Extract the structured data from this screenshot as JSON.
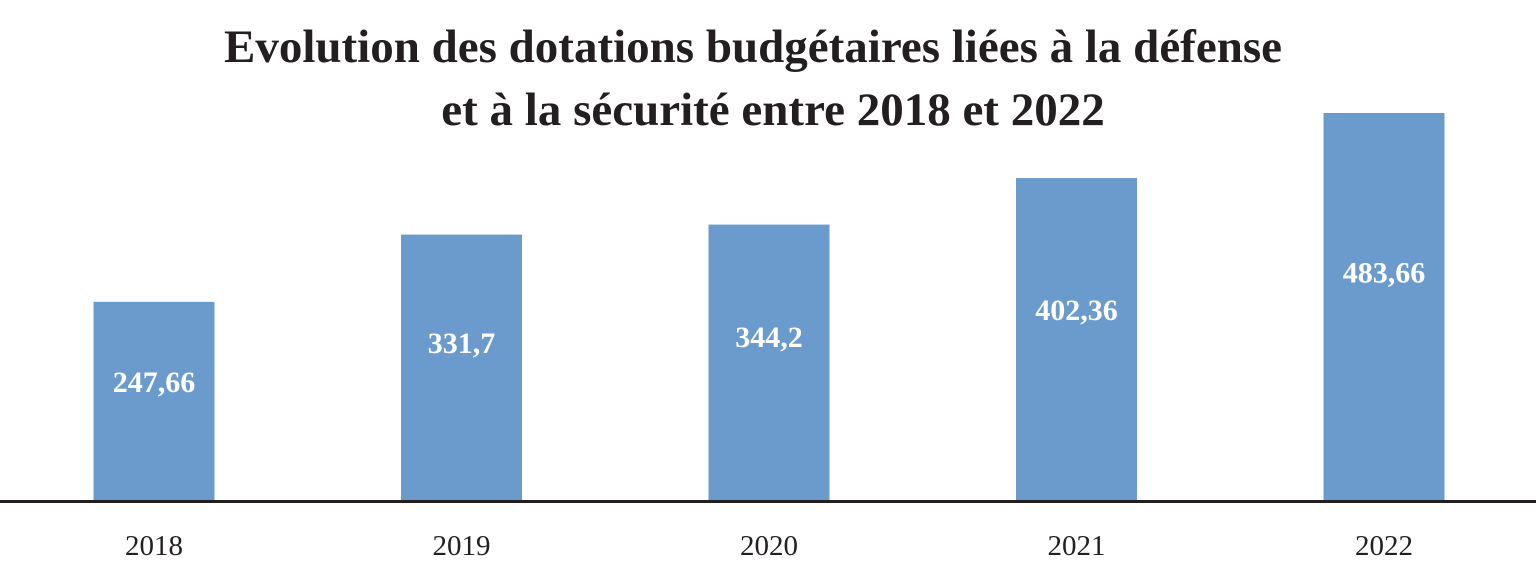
{
  "chart_data": {
    "type": "bar",
    "title_lines": [
      "Evolution des dotations budgétaires liées à la défense",
      "et à la sécurité entre 2018 et 2022"
    ],
    "categories": [
      "2018",
      "2019",
      "2020",
      "2021",
      "2022"
    ],
    "values": [
      247.66,
      331.7,
      344.2,
      402.36,
      483.66
    ],
    "data_labels": [
      "247,66",
      "331,7",
      "344,2",
      "402,36",
      "483,66"
    ],
    "xlabel": "",
    "ylabel": "",
    "ylim": [
      0,
      483.66
    ],
    "grid": false,
    "legend": "none",
    "colors": {
      "bar": "#6b9bcc",
      "axis": "#231f20",
      "title": "#231f20",
      "data_label": "#ffffff"
    }
  }
}
